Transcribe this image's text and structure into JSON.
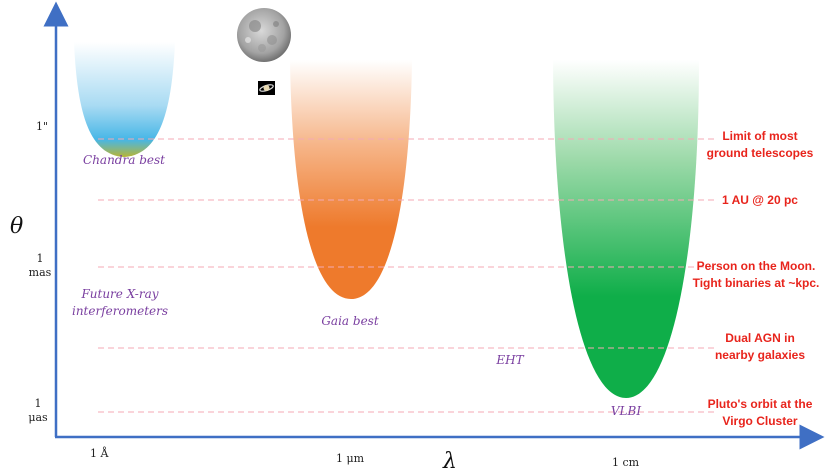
{
  "axes": {
    "y_symbol": "θ",
    "x_symbol": "λ",
    "y_ticks": [
      "1\"",
      "1\nmas",
      "1\nμas"
    ],
    "x_ticks": [
      "1 Å",
      "1 μm",
      "1 cm"
    ]
  },
  "regions": [
    {
      "label": "Chandra best",
      "color": "#47b6e6"
    },
    {
      "label": "Gaia best",
      "color": "#ee7a2c"
    },
    {
      "label": "VLBI",
      "color": "#0fae49"
    }
  ],
  "other_labels": {
    "future_xray": "Future X-ray\ninterferometers",
    "eht": "EHT"
  },
  "scale_lines": [
    {
      "label": "Limit of most\nground telescopes"
    },
    {
      "label": "1 AU @ 20 pc"
    },
    {
      "label": "Person on the Moon.\nTight binaries at ~kpc."
    },
    {
      "label": "Dual AGN in\nnearby galaxies"
    },
    {
      "label": "Pluto's orbit at the\nVirgo Cluster"
    }
  ],
  "colors": {
    "axis": "#3f6fc4",
    "dashed_line": "#f4a9b4",
    "label_purple": "#7a3fa0",
    "label_red": "#e8241c"
  },
  "icons": [
    "moon-icon",
    "saturn-icon"
  ]
}
